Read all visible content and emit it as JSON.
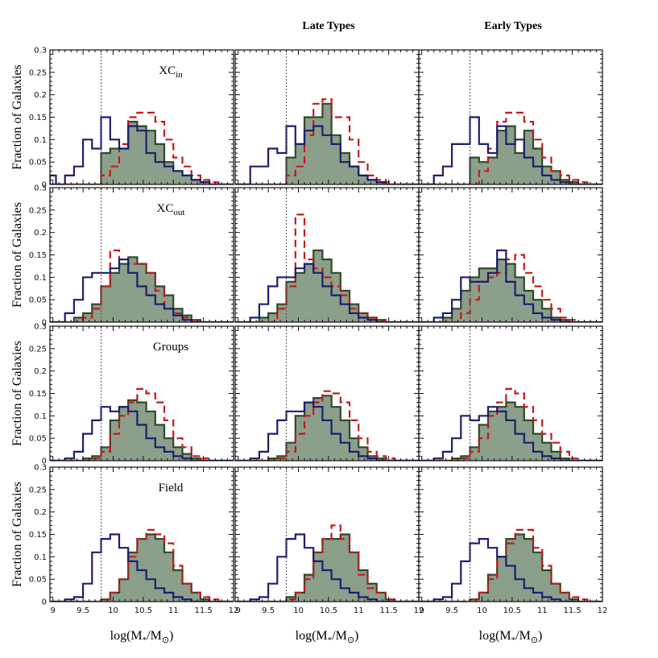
{
  "column_titles": [
    "",
    "Late Types",
    "Early Types"
  ],
  "row_labels": [
    {
      "text": "XC",
      "sub": "in"
    },
    {
      "text": "XC",
      "sub": "out"
    },
    {
      "text": "Groups",
      "sub": ""
    },
    {
      "text": "Field",
      "sub": ""
    }
  ],
  "ylabel": "Fraction of Galaxies",
  "xlabel": {
    "pre": "log(M",
    "sub1": "*",
    "mid": "/M",
    "sub2": "⊙",
    "post": ")"
  },
  "colors": {
    "blue": "#1c1f6e",
    "red": "#c41a1a",
    "green_line": "#2d4a2a",
    "green_fill": "#8c9f8a",
    "cut_line": "#555555"
  },
  "chart_data": {
    "type": "histogram-grid",
    "xlim": [
      8.95,
      12.0
    ],
    "ylim": [
      0,
      0.3
    ],
    "x_ticks": [
      9,
      9.5,
      10,
      10.5,
      11,
      11.5,
      12
    ],
    "x_tick_labels": [
      "9",
      "9.5",
      "10",
      "10.5",
      "11",
      "11.5",
      "12"
    ],
    "y_ticks": [
      0,
      0.05,
      0.1,
      0.15,
      0.2,
      0.25,
      0.3
    ],
    "y_tick_labels": [
      "0",
      "0.05",
      "0.1",
      "0.15",
      "0.2",
      "0.25",
      "0.3"
    ],
    "mass_cut": 9.8,
    "bin_width": 0.15,
    "bin_edges_start": 8.9,
    "bins": 21,
    "panels": [
      {
        "row": 0,
        "col": 0,
        "blue": [
          0.02,
          0.0,
          0.02,
          0.04,
          0.1,
          0.08,
          0.15,
          0.1,
          0.08,
          0.13,
          0.12,
          0.07,
          0.05,
          0.04,
          0.03,
          0.02,
          0.01,
          0.005,
          0,
          0,
          0
        ],
        "red": [
          0,
          0,
          0,
          0,
          0,
          0,
          0.02,
          0.04,
          0.09,
          0.15,
          0.16,
          0.16,
          0.14,
          0.1,
          0.06,
          0.04,
          0.02,
          0.01,
          0.005,
          0,
          0
        ],
        "green": [
          0,
          0,
          0,
          0,
          0,
          0,
          0.07,
          0.08,
          0.08,
          0.14,
          0.13,
          0.12,
          0.09,
          0.05,
          0.03,
          0.02,
          0.01,
          0.005,
          0,
          0,
          0
        ]
      },
      {
        "row": 0,
        "col": 1,
        "blue": [
          0,
          0,
          0.04,
          0.04,
          0.08,
          0.07,
          0.13,
          0.09,
          0.12,
          0.13,
          0.11,
          0.09,
          0.05,
          0.04,
          0.02,
          0.01,
          0.005,
          0,
          0,
          0,
          0
        ],
        "red": [
          0,
          0,
          0,
          0,
          0,
          0,
          0.02,
          0.04,
          0.11,
          0.18,
          0.19,
          0.15,
          0.15,
          0.1,
          0.05,
          0.02,
          0.01,
          0.005,
          0,
          0,
          0
        ],
        "green": [
          0,
          0,
          0,
          0,
          0,
          0,
          0.06,
          0.09,
          0.15,
          0.15,
          0.18,
          0.11,
          0.07,
          0.04,
          0.02,
          0.01,
          0.005,
          0,
          0,
          0,
          0
        ]
      },
      {
        "row": 0,
        "col": 2,
        "blue": [
          0,
          0,
          0.02,
          0.04,
          0.09,
          0.09,
          0.15,
          0.09,
          0.07,
          0.13,
          0.09,
          0.1,
          0.06,
          0.04,
          0.02,
          0.01,
          0.005,
          0,
          0,
          0,
          0
        ],
        "red": [
          0,
          0,
          0,
          0,
          0,
          0,
          0,
          0.03,
          0.08,
          0.14,
          0.16,
          0.16,
          0.14,
          0.1,
          0.06,
          0.03,
          0.02,
          0.01,
          0.005,
          0,
          0
        ],
        "green": [
          0,
          0,
          0,
          0,
          0,
          0,
          0.06,
          0.05,
          0.06,
          0.12,
          0.13,
          0.07,
          0.12,
          0.08,
          0.04,
          0.03,
          0.01,
          0.005,
          0,
          0,
          0
        ]
      },
      {
        "row": 1,
        "col": 0,
        "blue": [
          0,
          0,
          0.02,
          0.05,
          0.1,
          0.11,
          0.11,
          0.12,
          0.14,
          0.11,
          0.08,
          0.06,
          0.04,
          0.03,
          0.015,
          0.005,
          0,
          0,
          0,
          0,
          0
        ],
        "red": [
          0,
          0,
          0,
          0,
          0.01,
          0.03,
          0.08,
          0.16,
          0.14,
          0.13,
          0.13,
          0.11,
          0.07,
          0.03,
          0.02,
          0.01,
          0.005,
          0,
          0,
          0,
          0
        ],
        "green": [
          0,
          0,
          0,
          0.01,
          0.02,
          0.04,
          0.08,
          0.11,
          0.13,
          0.145,
          0.13,
          0.11,
          0.08,
          0.06,
          0.03,
          0.015,
          0.005,
          0,
          0,
          0,
          0
        ]
      },
      {
        "row": 1,
        "col": 1,
        "blue": [
          0,
          0,
          0.01,
          0.04,
          0.08,
          0.1,
          0.1,
          0.12,
          0.13,
          0.11,
          0.08,
          0.06,
          0.04,
          0.02,
          0.01,
          0.005,
          0,
          0,
          0,
          0,
          0
        ],
        "red": [
          0,
          0,
          0,
          0,
          0,
          0.03,
          0.08,
          0.24,
          0.14,
          0.12,
          0.1,
          0.08,
          0.06,
          0.03,
          0.02,
          0.01,
          0.005,
          0,
          0,
          0,
          0
        ],
        "green": [
          0,
          0,
          0,
          0.01,
          0.02,
          0.04,
          0.09,
          0.11,
          0.13,
          0.16,
          0.14,
          0.11,
          0.07,
          0.04,
          0.02,
          0.01,
          0.005,
          0,
          0,
          0,
          0
        ]
      },
      {
        "row": 1,
        "col": 2,
        "blue": [
          0,
          0,
          0.01,
          0.02,
          0.05,
          0.1,
          0.09,
          0.09,
          0.11,
          0.16,
          0.09,
          0.06,
          0.04,
          0.02,
          0.01,
          0.005,
          0,
          0,
          0,
          0,
          0
        ],
        "red": [
          0,
          0,
          0,
          0,
          0,
          0.02,
          0.05,
          0.09,
          0.1,
          0.11,
          0.14,
          0.15,
          0.11,
          0.08,
          0.05,
          0.03,
          0.01,
          0.005,
          0,
          0,
          0
        ],
        "green": [
          0,
          0,
          0,
          0.01,
          0.03,
          0.07,
          0.1,
          0.12,
          0.12,
          0.14,
          0.13,
          0.1,
          0.07,
          0.05,
          0.03,
          0.01,
          0.005,
          0,
          0,
          0,
          0
        ]
      },
      {
        "row": 2,
        "col": 0,
        "blue": [
          0,
          0,
          0.005,
          0.02,
          0.06,
          0.09,
          0.12,
          0.11,
          0.12,
          0.11,
          0.08,
          0.05,
          0.03,
          0.02,
          0.01,
          0.005,
          0,
          0,
          0,
          0,
          0
        ],
        "red": [
          0,
          0,
          0,
          0,
          0,
          0.005,
          0.02,
          0.06,
          0.1,
          0.13,
          0.16,
          0.15,
          0.13,
          0.09,
          0.05,
          0.03,
          0.01,
          0.005,
          0,
          0,
          0
        ],
        "green": [
          0,
          0,
          0,
          0,
          0.005,
          0.01,
          0.03,
          0.09,
          0.12,
          0.135,
          0.13,
          0.11,
          0.08,
          0.05,
          0.03,
          0.015,
          0.005,
          0,
          0,
          0,
          0
        ]
      },
      {
        "row": 2,
        "col": 1,
        "blue": [
          0,
          0,
          0.005,
          0.02,
          0.06,
          0.09,
          0.11,
          0.11,
          0.13,
          0.12,
          0.09,
          0.06,
          0.04,
          0.02,
          0.01,
          0.005,
          0,
          0,
          0,
          0,
          0
        ],
        "red": [
          0,
          0,
          0,
          0,
          0,
          0.005,
          0.02,
          0.06,
          0.1,
          0.13,
          0.155,
          0.15,
          0.13,
          0.09,
          0.05,
          0.02,
          0.01,
          0.005,
          0,
          0,
          0
        ],
        "green": [
          0,
          0,
          0,
          0,
          0.005,
          0.01,
          0.04,
          0.1,
          0.13,
          0.14,
          0.145,
          0.12,
          0.09,
          0.05,
          0.03,
          0.01,
          0.005,
          0,
          0,
          0,
          0
        ]
      },
      {
        "row": 2,
        "col": 2,
        "blue": [
          0,
          0,
          0.005,
          0.02,
          0.05,
          0.1,
          0.09,
          0.1,
          0.12,
          0.11,
          0.09,
          0.06,
          0.04,
          0.02,
          0.01,
          0.005,
          0,
          0,
          0,
          0,
          0
        ],
        "red": [
          0,
          0,
          0,
          0,
          0,
          0.005,
          0.02,
          0.05,
          0.1,
          0.13,
          0.16,
          0.15,
          0.12,
          0.09,
          0.06,
          0.04,
          0.02,
          0.005,
          0,
          0,
          0
        ],
        "green": [
          0,
          0,
          0,
          0,
          0.005,
          0.01,
          0.03,
          0.08,
          0.11,
          0.12,
          0.13,
          0.12,
          0.09,
          0.06,
          0.04,
          0.02,
          0.005,
          0,
          0,
          0,
          0
        ]
      },
      {
        "row": 3,
        "col": 0,
        "blue": [
          0,
          0,
          0.005,
          0.01,
          0.04,
          0.11,
          0.14,
          0.15,
          0.12,
          0.09,
          0.07,
          0.05,
          0.03,
          0.02,
          0.01,
          0.005,
          0,
          0,
          0,
          0,
          0
        ],
        "red": [
          0,
          0,
          0,
          0,
          0,
          0,
          0.005,
          0.02,
          0.05,
          0.1,
          0.14,
          0.16,
          0.15,
          0.13,
          0.08,
          0.04,
          0.02,
          0.01,
          0.005,
          0,
          0
        ],
        "green": [
          0,
          0,
          0,
          0,
          0,
          0,
          0.005,
          0.02,
          0.05,
          0.11,
          0.14,
          0.15,
          0.14,
          0.11,
          0.07,
          0.04,
          0.02,
          0.005,
          0,
          0,
          0
        ]
      },
      {
        "row": 3,
        "col": 1,
        "blue": [
          0,
          0,
          0.005,
          0.01,
          0.04,
          0.1,
          0.14,
          0.15,
          0.12,
          0.09,
          0.07,
          0.05,
          0.03,
          0.02,
          0.01,
          0.005,
          0,
          0,
          0,
          0,
          0
        ],
        "red": [
          0,
          0,
          0,
          0,
          0,
          0,
          0.005,
          0.02,
          0.05,
          0.11,
          0.14,
          0.17,
          0.14,
          0.11,
          0.06,
          0.03,
          0.02,
          0.005,
          0,
          0,
          0
        ],
        "green": [
          0,
          0,
          0,
          0,
          0,
          0,
          0.01,
          0.02,
          0.06,
          0.11,
          0.14,
          0.14,
          0.15,
          0.11,
          0.07,
          0.04,
          0.02,
          0.005,
          0,
          0,
          0
        ]
      },
      {
        "row": 3,
        "col": 2,
        "blue": [
          0,
          0,
          0.005,
          0.01,
          0.04,
          0.09,
          0.13,
          0.14,
          0.12,
          0.1,
          0.08,
          0.05,
          0.03,
          0.02,
          0.01,
          0.005,
          0,
          0,
          0,
          0,
          0
        ],
        "red": [
          0,
          0,
          0,
          0,
          0,
          0,
          0.005,
          0.02,
          0.05,
          0.1,
          0.13,
          0.16,
          0.16,
          0.12,
          0.08,
          0.04,
          0.02,
          0.01,
          0.005,
          0,
          0
        ],
        "green": [
          0,
          0,
          0,
          0,
          0,
          0,
          0.005,
          0.02,
          0.06,
          0.1,
          0.14,
          0.15,
          0.14,
          0.11,
          0.07,
          0.04,
          0.02,
          0.005,
          0,
          0,
          0
        ]
      }
    ]
  }
}
